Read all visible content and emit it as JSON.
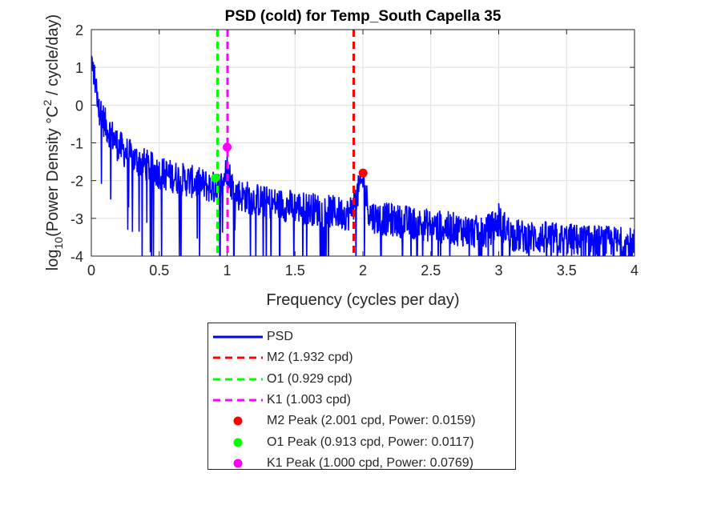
{
  "chart_data": {
    "type": "line",
    "title": "PSD (cold) for Temp_South Capella 35",
    "xlabel": "Frequency (cycles per day)",
    "ylabel": {
      "prefix": "log",
      "sub": "10",
      "mid": "(Power Density °C",
      "sup": "2",
      "suffix": " / cycle/day)"
    },
    "xlim": [
      0,
      4
    ],
    "ylim": [
      -4,
      2
    ],
    "x_ticks": [
      "0",
      "0.5",
      "1",
      "1.5",
      "2",
      "2.5",
      "3",
      "3.5",
      "4"
    ],
    "y_ticks": [
      "-4",
      "-3",
      "-2",
      "-1",
      "0",
      "1",
      "2"
    ],
    "grid": true,
    "legend_position": "below",
    "series": [
      {
        "name": "PSD",
        "color": "#0000ff",
        "style": "solid",
        "note_trend": "log10 PSD decreasing from about 1.3 near 0 cpd to about -3.6 near 4 cpd, noisy",
        "x": [
          0.0,
          0.02,
          0.05,
          0.1,
          0.15,
          0.2,
          0.3,
          0.4,
          0.5,
          0.6,
          0.7,
          0.8,
          0.9,
          0.95,
          1.0,
          1.05,
          1.1,
          1.2,
          1.3,
          1.4,
          1.5,
          1.6,
          1.7,
          1.8,
          1.9,
          2.0,
          2.05,
          2.1,
          2.2,
          2.3,
          2.4,
          2.5,
          2.6,
          2.7,
          2.8,
          2.9,
          3.0,
          3.1,
          3.2,
          3.3,
          3.4,
          3.5,
          3.6,
          3.7,
          3.8,
          3.9,
          4.0
        ],
        "y": [
          1.2,
          0.8,
          0.1,
          -0.4,
          -0.7,
          -1.0,
          -1.3,
          -1.5,
          -1.7,
          -1.8,
          -1.9,
          -2.0,
          -2.1,
          -2.1,
          -1.6,
          -2.2,
          -2.3,
          -2.4,
          -2.5,
          -2.55,
          -2.6,
          -2.65,
          -2.7,
          -2.75,
          -2.8,
          -1.9,
          -2.8,
          -2.9,
          -2.95,
          -3.0,
          -3.05,
          -3.1,
          -3.15,
          -3.2,
          -3.25,
          -3.3,
          -3.0,
          -3.35,
          -3.4,
          -3.42,
          -3.45,
          -3.47,
          -3.5,
          -3.52,
          -3.55,
          -3.57,
          -3.6
        ]
      }
    ],
    "vlines": [
      {
        "name": "M2 (1.932 cpd)",
        "x": 1.932,
        "color": "#ff0000"
      },
      {
        "name": "O1 (0.929 cpd)",
        "x": 0.929,
        "color": "#00ff00"
      },
      {
        "name": "K1 (1.003 cpd)",
        "x": 1.003,
        "color": "#ff00ff"
      }
    ],
    "peaks": [
      {
        "name": "M2 Peak (2.001 cpd, Power: 0.0159)",
        "x": 2.001,
        "y": -1.799,
        "color": "#ff0000"
      },
      {
        "name": "O1 Peak (0.913 cpd, Power: 0.0117)",
        "x": 0.913,
        "y": -1.932,
        "color": "#00ff00"
      },
      {
        "name": "K1 Peak (1.000 cpd, Power: 0.0769)",
        "x": 1.0,
        "y": -1.114,
        "color": "#ff00ff"
      }
    ]
  }
}
